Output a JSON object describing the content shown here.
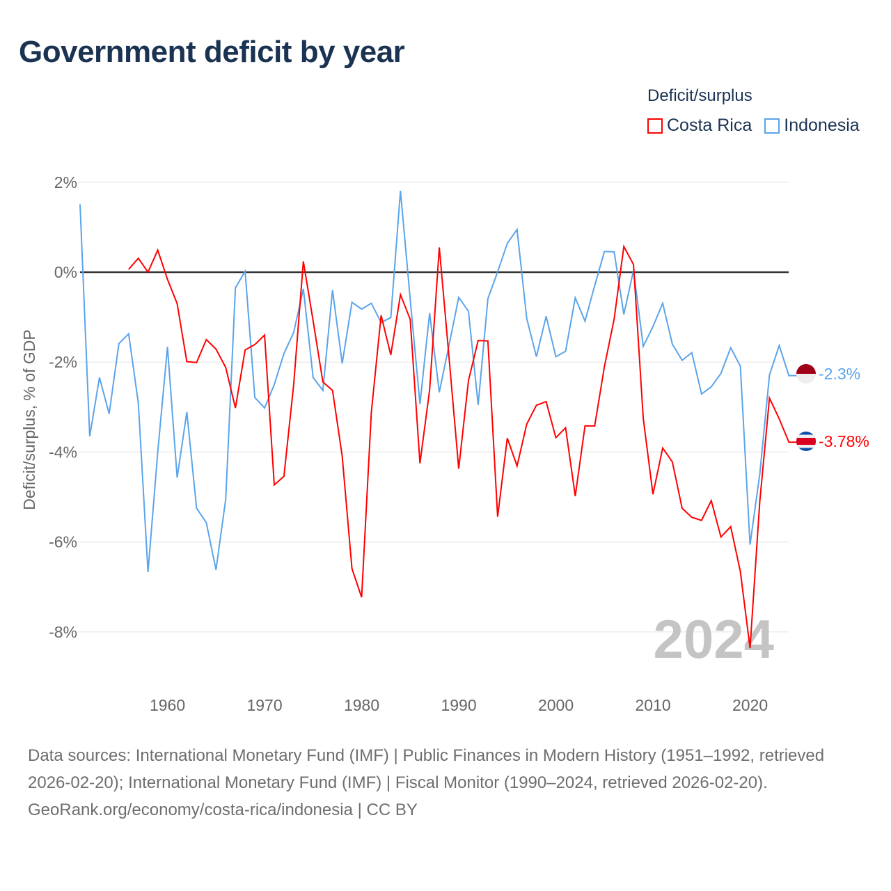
{
  "header": {
    "title": "Government deficit by year"
  },
  "legend": {
    "title": "Deficit/surplus"
  },
  "footer": {
    "sources": "Data sources: International Monetary Fund (IMF) | Public Finances in Modern History (1951–1992, retrieved 2026-02-20); International Monetary Fund (IMF) | Fiscal Monitor (1990–2024, retrieved 2026-02-20).",
    "credit": "GeoRank.org/economy/costa-rica/indonesia | CC BY"
  },
  "chart_data": {
    "type": "line",
    "title": "Government deficit by year",
    "xlabel": "",
    "ylabel": "Deficit/surplus, % of GDP",
    "xlim": [
      1951,
      2024
    ],
    "ylim": [
      -9,
      2
    ],
    "x_ticks": [
      1960,
      1970,
      1980,
      1990,
      2000,
      2010,
      2020
    ],
    "y_ticks": [
      2,
      0,
      -2,
      -4,
      -6,
      -8
    ],
    "y_tick_labels": [
      "2%",
      "0%",
      "-2%",
      "-4%",
      "-6%",
      "-8%"
    ],
    "grid": true,
    "legend_position": "top-right",
    "year_label": "2024",
    "series": [
      {
        "name": "Costa Rica",
        "color": "#ff0000",
        "end_label": "-3.78%",
        "start_year": 1956,
        "values": [
          0.06,
          0.31,
          0,
          0.49,
          -0.16,
          -0.7,
          -1.99,
          -2.01,
          -1.5,
          -1.71,
          -2.12,
          -3.02,
          -1.73,
          -1.61,
          -1.4,
          -4.73,
          -4.54,
          -2.5,
          0.24,
          -1.08,
          -2.44,
          -2.63,
          -4.09,
          -6.59,
          -7.23,
          -3.11,
          -0.96,
          -1.84,
          -0.5,
          -1.05,
          -4.25,
          -2.62,
          0.55,
          -1.9,
          -4.37,
          -2.41,
          -1.52,
          -1.53,
          -5.44,
          -3.69,
          -4.31,
          -3.38,
          -2.96,
          -2.88,
          -3.68,
          -3.46,
          -4.98,
          -3.42,
          -3.42,
          -2.1,
          -1.04,
          0.57,
          0.17,
          -3.25,
          -4.94,
          -3.91,
          -4.22,
          -5.25,
          -5.45,
          -5.52,
          -5.08,
          -5.89,
          -5.66,
          -6.66,
          -8.36,
          -5.1,
          -2.8,
          -3.26,
          -3.78
        ]
      },
      {
        "name": "Indonesia",
        "color": "#5ba4ea",
        "end_label": "-2.3%",
        "start_year": 1951,
        "values": [
          1.51,
          -3.65,
          -2.34,
          -3.15,
          -1.59,
          -1.37,
          -2.91,
          -6.67,
          -4.0,
          -1.66,
          -4.57,
          -3.11,
          -5.25,
          -5.57,
          -6.62,
          -5.04,
          -0.35,
          0.02,
          -2.79,
          -3.02,
          -2.5,
          -1.81,
          -1.34,
          -0.37,
          -2.34,
          -2.63,
          -0.4,
          -2.03,
          -0.67,
          -0.82,
          -0.69,
          -1.12,
          -1.01,
          1.81,
          -0.6,
          -2.93,
          -0.91,
          -2.67,
          -1.62,
          -0.56,
          -0.87,
          -2.95,
          -0.59,
          0.01,
          0.64,
          0.95,
          -1.03,
          -1.88,
          -0.98,
          -1.88,
          -1.76,
          -0.57,
          -1.09,
          -0.3,
          0.46,
          0.45,
          -0.94,
          0.04,
          -1.65,
          -1.21,
          -0.69,
          -1.6,
          -1.96,
          -1.79,
          -2.71,
          -2.55,
          -2.25,
          -1.68,
          -2.09,
          -6.06,
          -4.49,
          -2.29,
          -1.63,
          -2.3
        ]
      }
    ]
  }
}
